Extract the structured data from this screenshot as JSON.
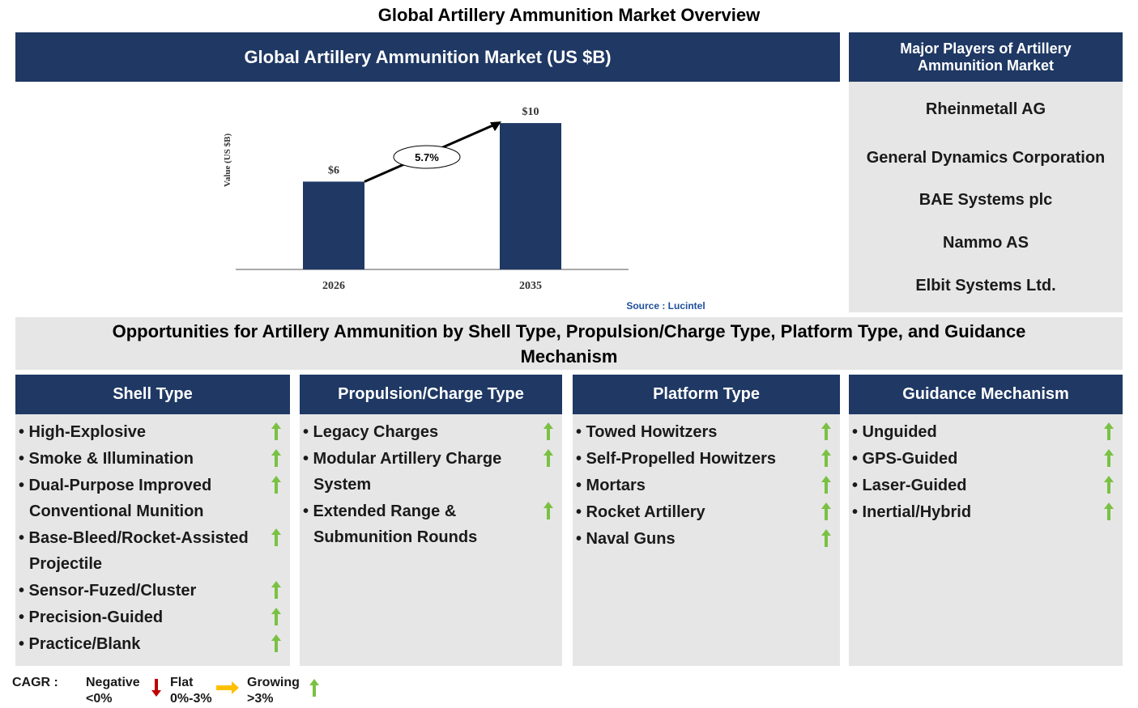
{
  "title": "Global Artillery Ammunition Market Overview",
  "chart_data": {
    "type": "bar",
    "title": "Global Artillery Ammunition Market (US $B)",
    "ylabel": "Value (US $B)",
    "categories": [
      "2026",
      "2035"
    ],
    "values": [
      6,
      10
    ],
    "value_labels": [
      "$6",
      "$10"
    ],
    "color": "#1f3864",
    "ylim": [
      0,
      11
    ],
    "cagr_label": "5.7%",
    "source": "Source : Lucintel"
  },
  "players": {
    "title": "Major Players of Artillery Ammunition Market",
    "items": [
      "Rheinmetall AG",
      "General Dynamics Corporation",
      "BAE Systems plc",
      "Nammo AS",
      "Elbit Systems Ltd."
    ]
  },
  "opportunities": {
    "title": "Opportunities for Artillery Ammunition by Shell Type, Propulsion/Charge Type, Platform Type, and Guidance Mechanism",
    "segments": [
      {
        "title": "Shell Type",
        "items": [
          "High-Explosive",
          "Smoke & Illumination",
          "Dual-Purpose Improved Conventional Munition",
          "Base-Bleed/Rocket-Assisted Projectile",
          "Sensor-Fuzed/Cluster",
          "Precision-Guided",
          "Practice/Blank"
        ]
      },
      {
        "title": "Propulsion/Charge Type",
        "items": [
          "Legacy Charges",
          "Modular Artillery Charge System",
          "Extended Range & Submunition Rounds"
        ]
      },
      {
        "title": "Platform Type",
        "items": [
          "Towed Howitzers",
          "Self-Propelled Howitzers",
          "Mortars",
          "Rocket Artillery",
          "Naval Guns"
        ]
      },
      {
        "title": "Guidance Mechanism",
        "items": [
          "Unguided",
          "GPS-Guided",
          "Laser-Guided",
          "Inertial/Hybrid"
        ]
      }
    ]
  },
  "legend": {
    "label": "CAGR :",
    "items": [
      {
        "name": "Negative",
        "range": "<0%"
      },
      {
        "name": "Flat",
        "range": "0%-3%"
      },
      {
        "name": "Growing",
        "range": ">3%"
      }
    ]
  }
}
